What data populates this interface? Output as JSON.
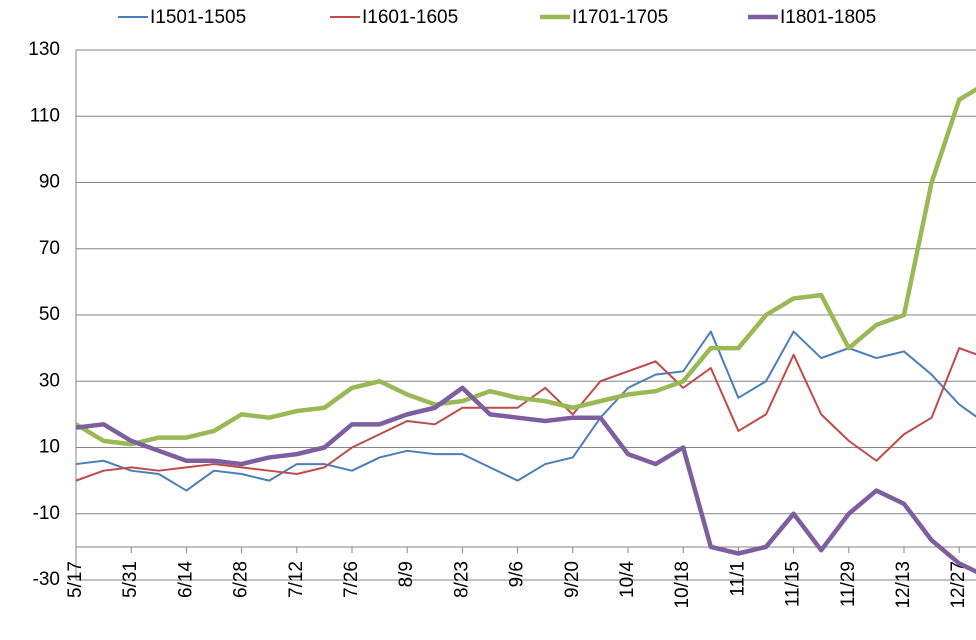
{
  "chart_data": {
    "type": "line",
    "categories": [
      "5/17",
      null,
      "5/31",
      null,
      "6/14",
      null,
      "6/28",
      null,
      "7/12",
      null,
      "7/26",
      null,
      "8/9",
      null,
      "8/23",
      null,
      "9/6",
      null,
      "9/20",
      null,
      "10/4",
      null,
      "10/18",
      null,
      "11/1",
      null,
      "11/15",
      null,
      "11/29",
      null,
      "12/13",
      null,
      "12/27",
      null
    ],
    "series": [
      {
        "name": "I1501-1505",
        "color": "#4a7ebb",
        "values": [
          5,
          6,
          3,
          2,
          -3,
          3,
          2,
          0,
          5,
          5,
          3,
          7,
          9,
          8,
          8,
          4,
          0,
          5,
          7,
          19,
          28,
          32,
          33,
          45,
          25,
          30,
          45,
          37,
          40,
          37,
          39,
          32,
          23,
          17
        ]
      },
      {
        "name": "I1601-1605",
        "color": "#be4b48",
        "values": [
          0,
          3,
          4,
          3,
          4,
          5,
          4,
          3,
          2,
          4,
          10,
          14,
          18,
          17,
          22,
          22,
          22,
          28,
          20,
          30,
          33,
          36,
          28,
          34,
          15,
          20,
          38,
          20,
          12,
          6,
          14,
          19,
          40,
          37
        ]
      },
      {
        "name": "I1701-1705",
        "color": "#98b954",
        "values": [
          17,
          12,
          11,
          13,
          13,
          15,
          20,
          19,
          21,
          22,
          28,
          30,
          26,
          23,
          24,
          27,
          25,
          24,
          22,
          24,
          26,
          27,
          30,
          40,
          40,
          50,
          55,
          56,
          40,
          47,
          50,
          90,
          115,
          120
        ]
      },
      {
        "name": "I1801-1805",
        "color": "#7d5fa0",
        "values": [
          16,
          17,
          12,
          9,
          6,
          6,
          5,
          7,
          8,
          10,
          17,
          17,
          20,
          22,
          28,
          20,
          19,
          18,
          19,
          19,
          8,
          5,
          10,
          -20,
          -22,
          -20,
          -10,
          -21,
          -10,
          -3,
          -7,
          -18,
          -25,
          -29
        ]
      }
    ],
    "ylim": [
      -30,
      130
    ],
    "yticks": [
      -30,
      -10,
      10,
      30,
      50,
      70,
      90,
      110,
      130
    ],
    "grid": true,
    "legend": "top"
  }
}
